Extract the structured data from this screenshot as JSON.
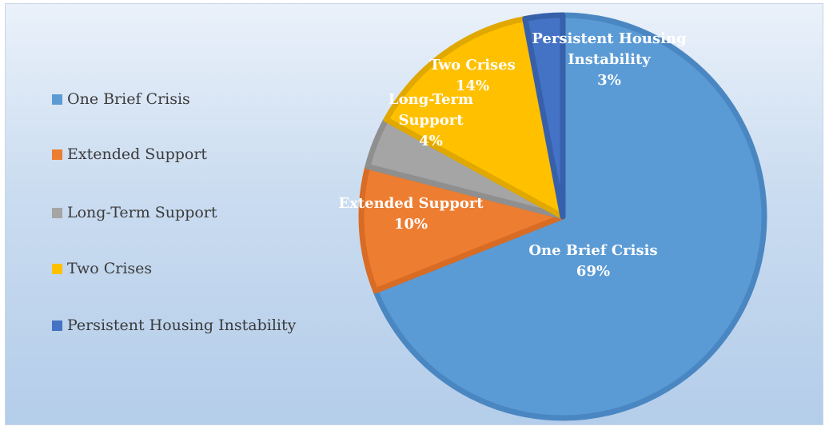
{
  "chart_data": {
    "type": "pie",
    "title": "",
    "legend_position": "left",
    "slices": [
      {
        "label": "One Brief Crisis",
        "value": 69,
        "display": "69%",
        "color": "#5b9bd5",
        "border": "#4a87c2"
      },
      {
        "label": "Extended Support",
        "value": 10,
        "display": "10%",
        "color": "#ed7d31",
        "border": "#d86c24"
      },
      {
        "label": "Long-Term Support",
        "value": 4,
        "display": "4%",
        "color": "#a5a5a5",
        "border": "#8f8f8f"
      },
      {
        "label": "Two Crises",
        "value": 14,
        "display": "14%",
        "color": "#ffc000",
        "border": "#e0a800"
      },
      {
        "label": "Persistent Housing Instability",
        "value": 3,
        "display": "3%",
        "color": "#4472c4",
        "border": "#3760ab"
      }
    ],
    "slice_label_lines": [
      [
        "One Brief Crisis",
        "69%"
      ],
      [
        "Extended Support",
        "10%"
      ],
      [
        "Long-Term",
        "Support",
        "4%"
      ],
      [
        "Two Crises",
        "14%"
      ],
      [
        "Persistent Housing",
        "Instability",
        "3%"
      ]
    ]
  }
}
